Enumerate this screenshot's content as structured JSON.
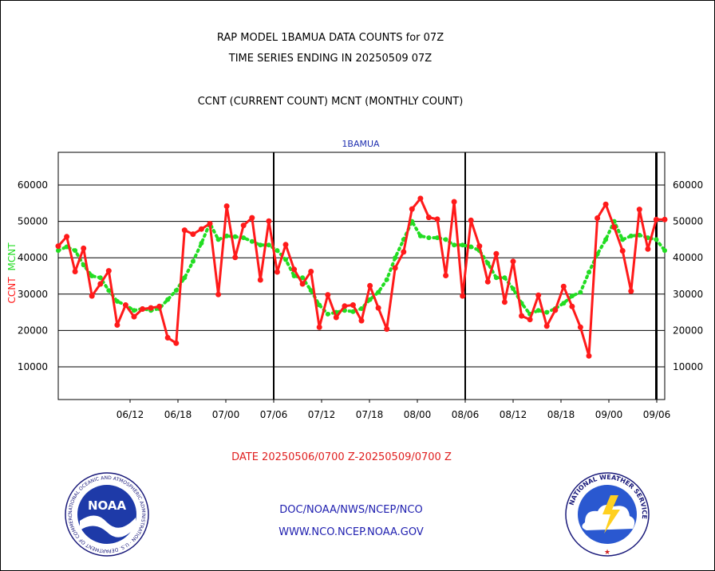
{
  "header": {
    "title_line1": "RAP MODEL 1BAMUA DATA COUNTS for 07Z",
    "title_line2": "TIME SERIES ENDING IN 20250509 07Z",
    "subtitle": "CCNT (CURRENT COUNT) MCNT (MONTHLY COUNT)"
  },
  "footer": {
    "date_range": "DATE 20250506/0700 Z-20250509/0700 Z",
    "org_path": "DOC/NOAA/NWS/NCEP/NCO",
    "website": "WWW.NCO.NCEP.NOAA.GOV"
  },
  "logos": {
    "left_label": "NOAA",
    "left_ring": "NATIONAL OCEANIC AND ATMOSPHERIC ADMINISTRATION · U.S. DEPARTMENT OF COMMERCE ·",
    "right_ring": "NATIONAL WEATHER SERVICE"
  },
  "colors": {
    "ccnt": "#ff1a1a",
    "mcnt": "#22dd22",
    "date_text": "#e02020",
    "link_text": "#2020b0",
    "station_label": "#2030b0"
  },
  "chart_data": {
    "type": "line",
    "station_label": "1BAMUA",
    "ylabel_ccnt": "CCNT",
    "ylabel_mcnt": "MCNT",
    "x_ticks": [
      "06/12",
      "06/18",
      "07/00",
      "07/06",
      "07/12",
      "07/18",
      "08/00",
      "08/06",
      "08/12",
      "08/18",
      "09/00",
      "09/06"
    ],
    "y_ticks": [
      10000,
      20000,
      30000,
      40000,
      50000,
      60000
    ],
    "ylim": [
      1000,
      69000
    ],
    "grid": true,
    "x_start": "06/03",
    "x_end": "09/07",
    "x_step_hours": 1,
    "day_dividers": [
      "07/06",
      "08/06",
      "09/06"
    ],
    "series": [
      {
        "name": "CCNT",
        "values": [
          43200,
          45800,
          36200,
          42600,
          29500,
          32800,
          36400,
          21500,
          27000,
          23800,
          25900,
          26200,
          26600,
          18000,
          16500,
          47600,
          46500,
          47900,
          49400,
          29900,
          54200,
          40100,
          48900,
          51000,
          33900,
          50100,
          36100,
          43600,
          36800,
          32800,
          36200,
          20900,
          29800,
          23600,
          26700,
          27000,
          22700,
          32300,
          26200,
          20400,
          37200,
          41600,
          53400,
          56300,
          51100,
          50600,
          35100,
          55400,
          29500,
          50300,
          43200,
          33400,
          41100,
          27800,
          39000,
          24000,
          23000,
          29700,
          21200,
          25600,
          32100,
          26600,
          20900,
          13000,
          50900,
          54700,
          48400,
          41900,
          30800,
          53300,
          42400,
          50500,
          50500
        ]
      },
      {
        "name": "MCNT",
        "values": [
          42000,
          43000,
          42000,
          38000,
          35000,
          34500,
          31000,
          28000,
          27000,
          25500,
          26000,
          25500,
          26000,
          28500,
          31000,
          34500,
          39000,
          44000,
          49500,
          45000,
          46000,
          45800,
          45500,
          44500,
          43500,
          43500,
          42000,
          39500,
          35000,
          34500,
          31000,
          27000,
          24500,
          25000,
          25500,
          25200,
          26000,
          28500,
          30500,
          34000,
          40000,
          45000,
          50000,
          46000,
          45500,
          45500,
          45000,
          43500,
          43500,
          43000,
          42000,
          38500,
          34500,
          34500,
          31500,
          27500,
          24500,
          25500,
          25000,
          26000,
          27500,
          29500,
          30500,
          36000,
          41000,
          45000,
          50000,
          45000,
          46000,
          46200,
          45500,
          45000,
          42000
        ]
      }
    ]
  }
}
